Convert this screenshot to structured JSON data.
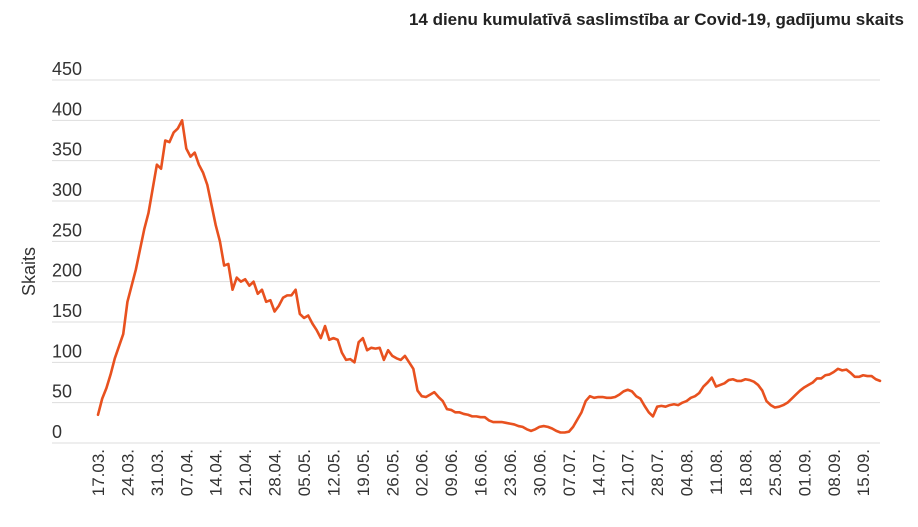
{
  "chart_data": {
    "type": "line",
    "title": "14 dienu kumulatīvā saslimstība ar Covid-19, gadījumu skaits",
    "xlabel": "",
    "ylabel": "Skaits",
    "ylim": [
      0,
      450
    ],
    "yticks": [
      "0",
      "50",
      "100",
      "150",
      "200",
      "250",
      "300",
      "350",
      "400",
      "450"
    ],
    "xticks": [
      "17.03.",
      "24.03.",
      "31.03.",
      "07.04.",
      "14.04.",
      "21.04.",
      "28.04.",
      "05.05.",
      "12.05.",
      "19.05.",
      "26.05.",
      "02.06.",
      "09.06.",
      "16.06.",
      "23.06.",
      "30.06.",
      "07.07.",
      "14.07.",
      "21.07.",
      "28.07.",
      "04.08.",
      "11.08.",
      "18.08.",
      "25.08.",
      "01.09.",
      "08.09.",
      "15.09."
    ],
    "grid": true,
    "series": [
      {
        "color": "#e8511f",
        "values": [
          [
            0,
            35
          ],
          [
            1,
            55
          ],
          [
            2,
            68
          ],
          [
            3,
            85
          ],
          [
            4,
            105
          ],
          [
            5,
            120
          ],
          [
            6,
            135
          ],
          [
            7,
            175
          ],
          [
            8,
            195
          ],
          [
            9,
            215
          ],
          [
            10,
            240
          ],
          [
            11,
            265
          ],
          [
            12,
            285
          ],
          [
            13,
            315
          ],
          [
            14,
            345
          ],
          [
            15,
            340
          ],
          [
            16,
            375
          ],
          [
            17,
            373
          ],
          [
            18,
            385
          ],
          [
            19,
            390
          ],
          [
            20,
            400
          ],
          [
            21,
            365
          ],
          [
            22,
            355
          ],
          [
            23,
            360
          ],
          [
            24,
            345
          ],
          [
            25,
            335
          ],
          [
            26,
            320
          ],
          [
            27,
            295
          ],
          [
            28,
            270
          ],
          [
            29,
            250
          ],
          [
            30,
            220
          ],
          [
            31,
            222
          ],
          [
            32,
            190
          ],
          [
            33,
            205
          ],
          [
            34,
            200
          ],
          [
            35,
            203
          ],
          [
            36,
            195
          ],
          [
            37,
            200
          ],
          [
            38,
            185
          ],
          [
            39,
            190
          ],
          [
            40,
            175
          ],
          [
            41,
            177
          ],
          [
            42,
            163
          ],
          [
            43,
            170
          ],
          [
            44,
            180
          ],
          [
            45,
            183
          ],
          [
            46,
            183
          ],
          [
            47,
            190
          ],
          [
            48,
            160
          ],
          [
            49,
            155
          ],
          [
            50,
            158
          ],
          [
            51,
            148
          ],
          [
            52,
            140
          ],
          [
            53,
            130
          ],
          [
            54,
            145
          ],
          [
            55,
            128
          ],
          [
            56,
            130
          ],
          [
            57,
            128
          ],
          [
            58,
            112
          ],
          [
            59,
            103
          ],
          [
            60,
            104
          ],
          [
            61,
            100
          ],
          [
            62,
            125
          ],
          [
            63,
            130
          ],
          [
            64,
            115
          ],
          [
            65,
            118
          ],
          [
            66,
            117
          ],
          [
            67,
            118
          ],
          [
            68,
            103
          ],
          [
            69,
            115
          ],
          [
            70,
            108
          ],
          [
            71,
            105
          ],
          [
            72,
            103
          ],
          [
            73,
            108
          ],
          [
            74,
            100
          ],
          [
            75,
            92
          ],
          [
            76,
            65
          ],
          [
            77,
            58
          ],
          [
            78,
            57
          ],
          [
            79,
            60
          ],
          [
            80,
            63
          ],
          [
            81,
            57
          ],
          [
            82,
            52
          ],
          [
            83,
            42
          ],
          [
            84,
            41
          ],
          [
            85,
            38
          ],
          [
            86,
            38
          ],
          [
            87,
            36
          ],
          [
            88,
            35
          ],
          [
            89,
            33
          ],
          [
            90,
            33
          ],
          [
            91,
            32
          ],
          [
            92,
            32
          ],
          [
            93,
            28
          ],
          [
            94,
            26
          ],
          [
            95,
            26
          ],
          [
            96,
            26
          ],
          [
            97,
            25
          ],
          [
            98,
            24
          ],
          [
            99,
            23
          ],
          [
            100,
            21
          ],
          [
            101,
            20
          ],
          [
            102,
            17
          ],
          [
            103,
            15
          ],
          [
            104,
            17
          ],
          [
            105,
            20
          ],
          [
            106,
            21
          ],
          [
            107,
            20
          ],
          [
            108,
            18
          ],
          [
            109,
            15
          ],
          [
            110,
            13
          ],
          [
            111,
            13
          ],
          [
            112,
            14
          ],
          [
            113,
            20
          ],
          [
            114,
            29
          ],
          [
            115,
            38
          ],
          [
            116,
            52
          ],
          [
            117,
            58
          ],
          [
            118,
            56
          ],
          [
            119,
            57
          ],
          [
            120,
            57
          ],
          [
            121,
            56
          ],
          [
            122,
            56
          ],
          [
            123,
            57
          ],
          [
            124,
            60
          ],
          [
            125,
            64
          ],
          [
            126,
            66
          ],
          [
            127,
            64
          ],
          [
            128,
            58
          ],
          [
            129,
            55
          ],
          [
            130,
            46
          ],
          [
            131,
            38
          ],
          [
            132,
            33
          ],
          [
            133,
            45
          ],
          [
            134,
            46
          ],
          [
            135,
            45
          ],
          [
            136,
            47
          ],
          [
            137,
            48
          ],
          [
            138,
            47
          ],
          [
            139,
            50
          ],
          [
            140,
            52
          ],
          [
            141,
            56
          ],
          [
            142,
            58
          ],
          [
            143,
            62
          ],
          [
            144,
            70
          ],
          [
            145,
            75
          ],
          [
            146,
            81
          ],
          [
            147,
            70
          ],
          [
            148,
            72
          ],
          [
            149,
            74
          ],
          [
            150,
            78
          ],
          [
            151,
            79
          ],
          [
            152,
            77
          ],
          [
            153,
            77
          ],
          [
            154,
            79
          ],
          [
            155,
            78
          ],
          [
            156,
            76
          ],
          [
            157,
            72
          ],
          [
            158,
            65
          ],
          [
            159,
            52
          ],
          [
            160,
            47
          ],
          [
            161,
            44
          ],
          [
            162,
            45
          ],
          [
            163,
            47
          ],
          [
            164,
            50
          ],
          [
            165,
            55
          ],
          [
            166,
            60
          ],
          [
            167,
            65
          ],
          [
            168,
            69
          ],
          [
            169,
            72
          ],
          [
            170,
            75
          ],
          [
            171,
            80
          ],
          [
            172,
            80
          ],
          [
            173,
            84
          ],
          [
            174,
            85
          ],
          [
            175,
            88
          ],
          [
            176,
            92
          ],
          [
            177,
            90
          ],
          [
            178,
            91
          ],
          [
            179,
            87
          ],
          [
            180,
            82
          ],
          [
            181,
            82
          ],
          [
            182,
            84
          ],
          [
            183,
            83
          ],
          [
            184,
            83
          ],
          [
            185,
            79
          ],
          [
            186,
            77
          ]
        ]
      }
    ]
  }
}
